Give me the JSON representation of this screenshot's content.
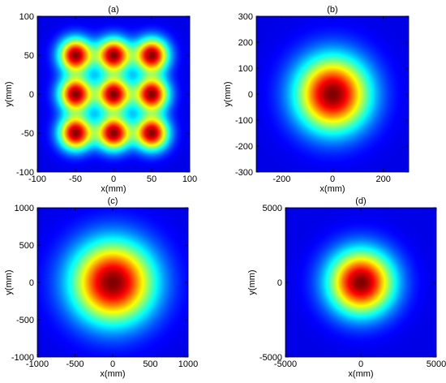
{
  "chart_data": [
    {
      "type": "heatmap",
      "title": "(a)",
      "xlabel": "x(mm)",
      "ylabel": "y(mm)",
      "xlim": [
        -100,
        100
      ],
      "ylim": [
        -100,
        100
      ],
      "xticks": [
        -100,
        -50,
        0,
        50,
        100
      ],
      "yticks": [
        -100,
        -50,
        0,
        50,
        100
      ],
      "x_tick_labels": [
        "-100",
        "-50",
        "0",
        "50",
        "100"
      ],
      "y_tick_labels": [
        "-100",
        "-50",
        "0",
        "50",
        "100"
      ],
      "pattern": "3x3 array of Gaussian spots",
      "spot_centers": [
        [
          -50,
          50
        ],
        [
          0,
          50
        ],
        [
          50,
          50
        ],
        [
          -50,
          0
        ],
        [
          0,
          0
        ],
        [
          50,
          0
        ],
        [
          -50,
          -50
        ],
        [
          0,
          -50
        ],
        [
          50,
          -50
        ]
      ],
      "spot_sigma_mm": 15,
      "colormap": "jet",
      "grid": false
    },
    {
      "type": "heatmap",
      "title": "(b)",
      "xlabel": "x(mm)",
      "ylabel": "y(mm)",
      "xlim": [
        -300,
        300
      ],
      "ylim": [
        -300,
        300
      ],
      "xticks": [
        -200,
        0,
        200
      ],
      "yticks": [
        -300,
        -200,
        -100,
        0,
        100,
        200,
        300
      ],
      "x_tick_labels": [
        "-200",
        "0",
        "200"
      ],
      "y_tick_labels": [
        "-300",
        "-200",
        "-100",
        "0",
        "100",
        "200",
        "300"
      ],
      "pattern": "single Gaussian spot",
      "spot_centers": [
        [
          0,
          0
        ]
      ],
      "spot_sigma_mm": 100,
      "colormap": "jet",
      "grid": false
    },
    {
      "type": "heatmap",
      "title": "(c)",
      "xlabel": "x(mm)",
      "ylabel": "y(mm)",
      "xlim": [
        -1000,
        1000
      ],
      "ylim": [
        -1000,
        1000
      ],
      "xticks": [
        -1000,
        -500,
        0,
        500,
        1000
      ],
      "yticks": [
        -1000,
        -500,
        0,
        500,
        1000
      ],
      "x_tick_labels": [
        "-1000",
        "-500",
        "0",
        "500",
        "1000"
      ],
      "y_tick_labels": [
        "-1000",
        "-500",
        "0",
        "500",
        "1000"
      ],
      "pattern": "single Gaussian spot",
      "spot_centers": [
        [
          0,
          0
        ]
      ],
      "spot_sigma_mm": 380,
      "colormap": "jet",
      "grid": false
    },
    {
      "type": "heatmap",
      "title": "(d)",
      "xlabel": "x(mm)",
      "ylabel": "y(mm)",
      "xlim": [
        -5000,
        5000
      ],
      "ylim": [
        -5000,
        5000
      ],
      "xticks": [
        -5000,
        0,
        5000
      ],
      "yticks": [
        -5000,
        0,
        5000
      ],
      "x_tick_labels": [
        "-5000",
        "0",
        "5000"
      ],
      "y_tick_labels": [
        "-5000",
        "0",
        "5000"
      ],
      "pattern": "single Gaussian spot",
      "spot_centers": [
        [
          0,
          0
        ]
      ],
      "spot_sigma_mm": 1500,
      "colormap": "jet",
      "grid": false
    }
  ]
}
